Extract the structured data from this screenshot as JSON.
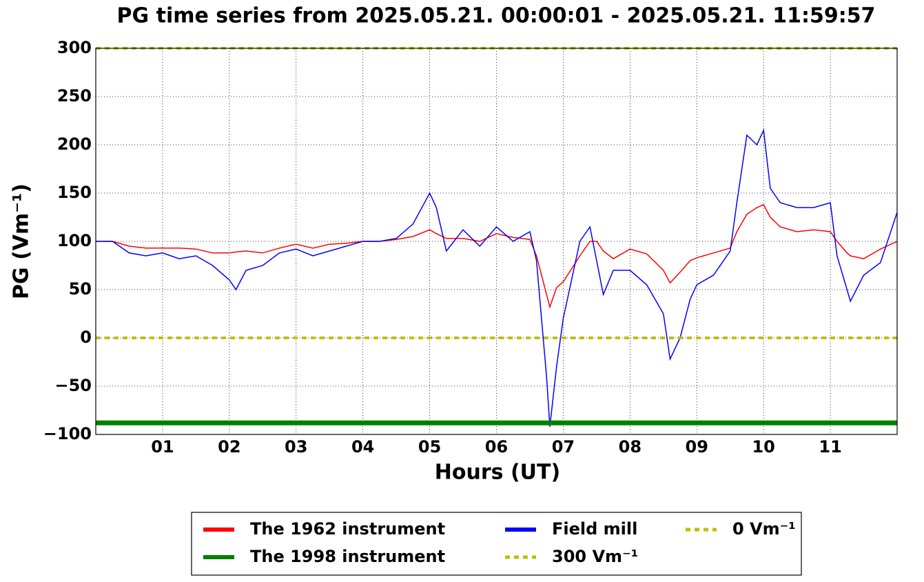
{
  "chart_data": {
    "type": "line",
    "title": "PG time series from 2025.05.21. 00:00:01 - 2025.05.21. 11:59:57",
    "xlabel": "Hours (UT)",
    "ylabel": "PG (Vm⁻¹)",
    "x": [
      0,
      0.25,
      0.5,
      0.75,
      1,
      1.25,
      1.5,
      1.75,
      2,
      2.1,
      2.25,
      2.5,
      2.75,
      3,
      3.25,
      3.5,
      3.75,
      4,
      4.25,
      4.5,
      4.75,
      5,
      5.1,
      5.25,
      5.5,
      5.75,
      6,
      6.25,
      6.5,
      6.6,
      6.75,
      6.8,
      6.9,
      7,
      7.25,
      7.4,
      7.5,
      7.6,
      7.75,
      8,
      8.25,
      8.5,
      8.6,
      8.75,
      8.9,
      9,
      9.25,
      9.5,
      9.6,
      9.75,
      9.9,
      10,
      10.1,
      10.25,
      10.5,
      10.75,
      11,
      11.1,
      11.25,
      11.3,
      11.5,
      11.75,
      12
    ],
    "series": [
      {
        "name": "The 1962 instrument",
        "color": "#ff0000",
        "values": [
          100,
          100,
          95,
          93,
          93,
          93,
          92,
          88,
          88,
          89,
          90,
          88,
          93,
          97,
          93,
          97,
          98,
          100,
          100,
          102,
          105,
          112,
          108,
          103,
          103,
          100,
          108,
          104,
          102,
          85,
          45,
          32,
          52,
          58,
          85,
          100,
          100,
          90,
          82,
          92,
          87,
          70,
          57,
          68,
          80,
          83,
          88,
          93,
          110,
          128,
          135,
          138,
          125,
          115,
          110,
          112,
          110,
          100,
          88,
          85,
          82,
          92,
          100
        ]
      },
      {
        "name": "Field mill",
        "color": "#0000ff",
        "values": [
          100,
          100,
          88,
          85,
          88,
          82,
          85,
          75,
          60,
          50,
          70,
          75,
          88,
          92,
          85,
          90,
          95,
          100,
          100,
          103,
          118,
          150,
          135,
          90,
          112,
          95,
          115,
          100,
          110,
          80,
          -40,
          -92,
          -30,
          20,
          100,
          115,
          80,
          45,
          70,
          70,
          55,
          25,
          -22,
          0,
          40,
          55,
          65,
          90,
          140,
          210,
          200,
          215,
          155,
          140,
          135,
          135,
          140,
          85,
          50,
          38,
          65,
          78,
          130
        ]
      }
    ],
    "hlines": [
      {
        "name": "The 1998 instrument",
        "color": "#008000",
        "value": -88,
        "dashed": false
      },
      {
        "name": "300 Vm⁻¹",
        "color": "#bfbf00",
        "value": 300,
        "dashed": true
      },
      {
        "name": "0 Vm⁻¹",
        "color": "#bfbf00",
        "value": 0,
        "dashed": true
      }
    ],
    "xlim": [
      0,
      12
    ],
    "xticks": [
      {
        "value": 1,
        "label": "01"
      },
      {
        "value": 2,
        "label": "02"
      },
      {
        "value": 3,
        "label": "03"
      },
      {
        "value": 4,
        "label": "04"
      },
      {
        "value": 5,
        "label": "05"
      },
      {
        "value": 6,
        "label": "06"
      },
      {
        "value": 7,
        "label": "07"
      },
      {
        "value": 8,
        "label": "08"
      },
      {
        "value": 9,
        "label": "09"
      },
      {
        "value": 10,
        "label": "10"
      },
      {
        "value": 11,
        "label": "11"
      }
    ],
    "ylim": [
      -100,
      300
    ],
    "yticks": [
      {
        "value": -100,
        "label": "−100"
      },
      {
        "value": -50,
        "label": "−50"
      },
      0,
      50,
      100,
      150,
      200,
      250,
      300
    ],
    "grid": true,
    "legend": "bottom"
  }
}
